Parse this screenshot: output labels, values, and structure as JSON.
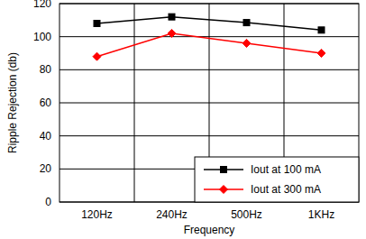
{
  "chart_data": {
    "type": "line",
    "x_label": "Frequency",
    "y_label": "Ripple Rejection (db)",
    "categories": [
      "120Hz",
      "240Hz",
      "500Hz",
      "1KHz"
    ],
    "series": [
      {
        "name": "Iout at 100 mA",
        "color": "#000000",
        "marker": "square",
        "values": [
          108,
          112,
          108.5,
          104
        ]
      },
      {
        "name": "Iout at 300 mA",
        "color": "#ff0000",
        "marker": "diamond",
        "values": [
          88,
          102,
          96,
          90
        ]
      }
    ],
    "ylim": [
      0,
      120
    ],
    "yticks": [
      0,
      20,
      40,
      60,
      80,
      100,
      120
    ],
    "grid": true,
    "legend": "lower right"
  }
}
